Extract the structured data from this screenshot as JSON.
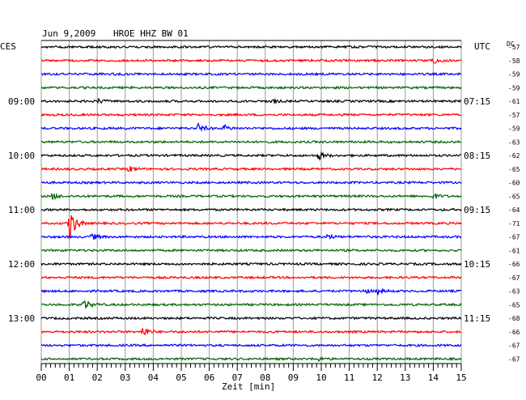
{
  "header": {
    "date": "Jun 9,2009",
    "station": "HROE HHZ BW 01",
    "left_zone": "CES",
    "right_zone": "UTC",
    "dc_label": "DC"
  },
  "chart_data": {
    "type": "line",
    "title": "Jun 9,2009   HROE HHZ BW 01",
    "xlabel": "Zeit [min]",
    "xlim": [
      0,
      15
    ],
    "x_ticks": [
      "00",
      "01",
      "02",
      "03",
      "04",
      "05",
      "06",
      "07",
      "08",
      "09",
      "10",
      "11",
      "12",
      "13",
      "14",
      "15"
    ],
    "left_time_labels": [
      {
        "trace": 4,
        "label": "09:00"
      },
      {
        "trace": 8,
        "label": "10:00"
      },
      {
        "trace": 12,
        "label": "11:00"
      },
      {
        "trace": 16,
        "label": "12:00"
      },
      {
        "trace": 20,
        "label": "13:00"
      }
    ],
    "right_time_labels": [
      {
        "trace": 4,
        "label": "07:15"
      },
      {
        "trace": 8,
        "label": "08:15"
      },
      {
        "trace": 12,
        "label": "09:15"
      },
      {
        "trace": 16,
        "label": "10:15"
      },
      {
        "trace": 20,
        "label": "11:15"
      }
    ],
    "trace_colors": [
      "#000000",
      "#ff0000",
      "#0000ff",
      "#006400"
    ],
    "dc_offsets": [
      -57,
      -58,
      -59,
      -59,
      -61,
      -57,
      -59,
      -63,
      -62,
      -65,
      -60,
      -65,
      -64,
      -71,
      -67,
      -61,
      -66,
      -67,
      -63,
      -65,
      -68,
      -66,
      -67,
      -67
    ],
    "events": [
      {
        "trace": 1,
        "minute": 14.0,
        "amplitude": 3
      },
      {
        "trace": 4,
        "minute": 2.0,
        "amplitude": 3
      },
      {
        "trace": 4,
        "minute": 8.2,
        "amplitude": 2
      },
      {
        "trace": 6,
        "minute": 5.6,
        "amplitude": 5
      },
      {
        "trace": 6,
        "minute": 6.5,
        "amplitude": 4
      },
      {
        "trace": 8,
        "minute": 9.9,
        "amplitude": 5
      },
      {
        "trace": 9,
        "minute": 3.1,
        "amplitude": 4
      },
      {
        "trace": 11,
        "minute": 0.4,
        "amplitude": 4
      },
      {
        "trace": 11,
        "minute": 14.0,
        "amplitude": 3
      },
      {
        "trace": 13,
        "minute": 1.0,
        "amplitude": 22
      },
      {
        "trace": 14,
        "minute": 1.8,
        "amplitude": 4
      },
      {
        "trace": 14,
        "minute": 10.2,
        "amplitude": 3
      },
      {
        "trace": 18,
        "minute": 12.0,
        "amplitude": 4
      },
      {
        "trace": 18,
        "minute": 11.5,
        "amplitude": 3
      },
      {
        "trace": 19,
        "minute": 1.5,
        "amplitude": 8
      },
      {
        "trace": 21,
        "minute": 3.6,
        "amplitude": 7
      },
      {
        "trace": 23,
        "minute": 9.8,
        "amplitude": 3
      }
    ]
  }
}
